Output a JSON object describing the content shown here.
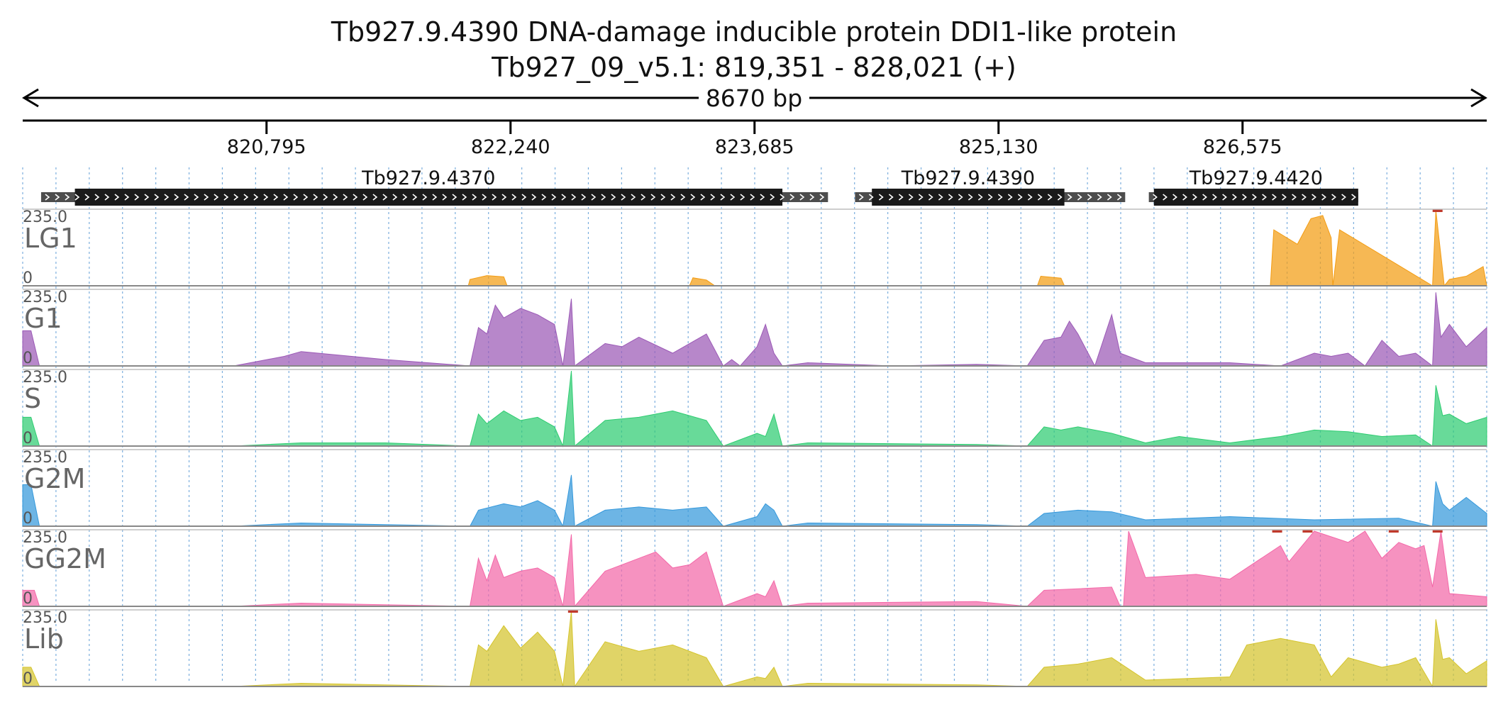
{
  "header": {
    "title_line1": "Tb927.9.4390  DNA-damage inducible protein DDI1-like protein",
    "title_line2": "Tb927_09_v5.1: 819,351 - 828,021 (+)",
    "span_label": "8670 bp"
  },
  "chart_data": {
    "type": "area",
    "title": "Tb927.9.4390  DNA-damage inducible protein DDI1-like protein",
    "subtitle": "Tb927_09_v5.1: 819,351 - 828,021 (+)",
    "xlabel": "",
    "ylabel": "",
    "x_range": [
      819351,
      828021
    ],
    "ruler_ticks": [
      {
        "pos": 820795,
        "label": "820,795"
      },
      {
        "pos": 822240,
        "label": "822,240"
      },
      {
        "pos": 823685,
        "label": "823,685"
      },
      {
        "pos": 825130,
        "label": "825,130"
      },
      {
        "pos": 826575,
        "label": "826,575"
      }
    ],
    "grid": true,
    "genes": [
      {
        "name": "Tb927.9.4370",
        "strand": "+",
        "utr_start": 819460,
        "cds_start": 819660,
        "cds_end": 823850,
        "utr_end": 824120
      },
      {
        "name": "Tb927.9.4390",
        "strand": "+",
        "utr_start": 824280,
        "cds_start": 824380,
        "cds_end": 825520,
        "utr_end": 825880
      },
      {
        "name": "Tb927.9.4420",
        "strand": "+",
        "utr_start": 826020,
        "cds_start": 826050,
        "cds_end": 827260,
        "utr_end": 827260
      }
    ],
    "tracks": [
      {
        "name": "LG1",
        "color": "#f39c12",
        "ymax_label": "235.0",
        "ymin_label": "0",
        "ylim": [
          0,
          235
        ],
        "x": [
          819351,
          821990,
          822000,
          822100,
          822200,
          822220,
          823300,
          823320,
          823400,
          823450,
          825360,
          825380,
          825500,
          825520,
          826740,
          826760,
          826900,
          826980,
          827050,
          827100,
          827110,
          827150,
          827700,
          827720,
          827770,
          827800,
          827900,
          828000,
          828021
        ],
        "values": [
          0,
          0,
          20,
          32,
          28,
          0,
          0,
          25,
          18,
          0,
          0,
          30,
          24,
          0,
          0,
          175,
          130,
          210,
          220,
          150,
          0,
          175,
          0,
          235,
          0,
          20,
          30,
          60,
          0
        ],
        "clipped": [
          827730
        ]
      },
      {
        "name": "G1",
        "color": "#9b59b6",
        "ymax_label": "235.0",
        "ymin_label": "0",
        "ylim": [
          0,
          235
        ],
        "x": [
          819351,
          819400,
          819450,
          820600,
          820900,
          821000,
          821500,
          822000,
          822050,
          822100,
          822150,
          822200,
          822300,
          822400,
          822500,
          822550,
          822600,
          822620,
          822800,
          822900,
          823000,
          823200,
          823400,
          823500,
          823550,
          823600,
          823700,
          823750,
          823800,
          823850,
          824000,
          824500,
          825000,
          825300,
          825400,
          825500,
          825550,
          825600,
          825700,
          825800,
          825850,
          826000,
          826500,
          826800,
          827000,
          827100,
          827200,
          827300,
          827400,
          827500,
          827600,
          827700,
          827720,
          827750,
          827800,
          827900,
          828021
        ],
        "values": [
          110,
          110,
          0,
          0,
          30,
          45,
          20,
          0,
          120,
          100,
          190,
          150,
          180,
          160,
          130,
          0,
          210,
          0,
          70,
          60,
          90,
          40,
          100,
          0,
          20,
          0,
          60,
          130,
          40,
          0,
          10,
          0,
          5,
          0,
          80,
          90,
          140,
          100,
          0,
          160,
          40,
          10,
          10,
          0,
          40,
          30,
          40,
          0,
          80,
          30,
          40,
          0,
          230,
          90,
          130,
          60,
          120
        ]
      },
      {
        "name": "S",
        "color": "#2ecc71",
        "ymax_label": "235.0",
        "ymin_label": "0",
        "ylim": [
          0,
          235
        ],
        "x": [
          819351,
          819400,
          819450,
          820600,
          821000,
          821500,
          822000,
          822050,
          822100,
          822200,
          822300,
          822400,
          822500,
          822550,
          822600,
          822620,
          822800,
          823000,
          823200,
          823400,
          823500,
          823700,
          823750,
          823800,
          823850,
          824000,
          825000,
          825300,
          825400,
          825500,
          825600,
          825800,
          826000,
          826200,
          826500,
          826800,
          827000,
          827200,
          827400,
          827600,
          827700,
          827720,
          827760,
          827800,
          827900,
          828021
        ],
        "values": [
          90,
          90,
          0,
          0,
          10,
          10,
          0,
          100,
          70,
          110,
          80,
          90,
          60,
          0,
          235,
          0,
          80,
          90,
          110,
          80,
          0,
          40,
          30,
          100,
          0,
          10,
          5,
          0,
          60,
          50,
          60,
          40,
          10,
          30,
          10,
          30,
          50,
          45,
          30,
          35,
          0,
          190,
          95,
          100,
          70,
          90
        ]
      },
      {
        "name": "G2M",
        "color": "#3498db",
        "ymax_label": "235.0",
        "ymin_label": "0",
        "ylim": [
          0,
          235
        ],
        "x": [
          819351,
          819400,
          819450,
          820600,
          821000,
          822000,
          822050,
          822200,
          822300,
          822400,
          822500,
          822550,
          822600,
          822620,
          822800,
          823000,
          823200,
          823400,
          823500,
          823700,
          823750,
          823800,
          823850,
          824000,
          825000,
          825300,
          825400,
          825600,
          825800,
          826000,
          826500,
          827000,
          827500,
          827700,
          827720,
          827760,
          827800,
          827900,
          828021
        ],
        "values": [
          130,
          130,
          0,
          0,
          10,
          0,
          50,
          70,
          60,
          80,
          50,
          0,
          160,
          0,
          50,
          60,
          50,
          60,
          0,
          30,
          70,
          50,
          0,
          10,
          5,
          0,
          40,
          50,
          45,
          20,
          30,
          20,
          25,
          0,
          140,
          70,
          50,
          90,
          40
        ]
      },
      {
        "name": "GG2M",
        "color": "#f368a8",
        "ymax_label": "235.0",
        "ymin_label": "0",
        "ylim": [
          0,
          235
        ],
        "x": [
          819351,
          819420,
          819450,
          819500,
          819700,
          820600,
          821000,
          822000,
          822050,
          822100,
          822150,
          822200,
          822300,
          822400,
          822500,
          822550,
          822600,
          822620,
          822800,
          823000,
          823100,
          823200,
          823300,
          823400,
          823500,
          823700,
          823750,
          823800,
          823850,
          824000,
          825000,
          825300,
          825400,
          825600,
          825800,
          825850,
          825870,
          825900,
          826000,
          826300,
          826500,
          826800,
          826850,
          827000,
          827200,
          827300,
          827400,
          827500,
          827600,
          827650,
          827700,
          827750,
          827800,
          828021
        ],
        "values": [
          50,
          50,
          0,
          0,
          0,
          0,
          10,
          0,
          150,
          80,
          160,
          90,
          110,
          120,
          90,
          0,
          225,
          0,
          110,
          150,
          170,
          120,
          130,
          170,
          0,
          40,
          30,
          80,
          0,
          10,
          15,
          0,
          50,
          55,
          60,
          0,
          0,
          235,
          90,
          100,
          85,
          190,
          140,
          235,
          200,
          235,
          150,
          200,
          180,
          190,
          60,
          235,
          40,
          30
        ],
        "clipped": [
          826780,
          826960,
          827470,
          827730
        ]
      },
      {
        "name": "Lib",
        "color": "#d4c42c",
        "ymax_label": "235.0",
        "ymin_label": "0",
        "ylim": [
          0,
          235
        ],
        "x": [
          819351,
          819400,
          819450,
          820600,
          821000,
          822000,
          822050,
          822100,
          822200,
          822300,
          822400,
          822500,
          822550,
          822600,
          822620,
          822800,
          823000,
          823200,
          823400,
          823500,
          823700,
          823750,
          823800,
          823850,
          824000,
          825000,
          825300,
          825400,
          825600,
          825800,
          826000,
          826500,
          826600,
          826800,
          827000,
          827100,
          827200,
          827400,
          827500,
          827600,
          827700,
          827720,
          827760,
          827800,
          827900,
          828021
        ],
        "values": [
          60,
          60,
          0,
          0,
          10,
          0,
          130,
          110,
          190,
          120,
          170,
          110,
          0,
          235,
          0,
          140,
          110,
          130,
          90,
          0,
          30,
          25,
          60,
          0,
          10,
          5,
          0,
          60,
          70,
          90,
          20,
          30,
          130,
          150,
          130,
          30,
          90,
          60,
          70,
          90,
          0,
          210,
          85,
          90,
          40,
          80
        ],
        "clipped": [
          822610
        ]
      }
    ]
  }
}
